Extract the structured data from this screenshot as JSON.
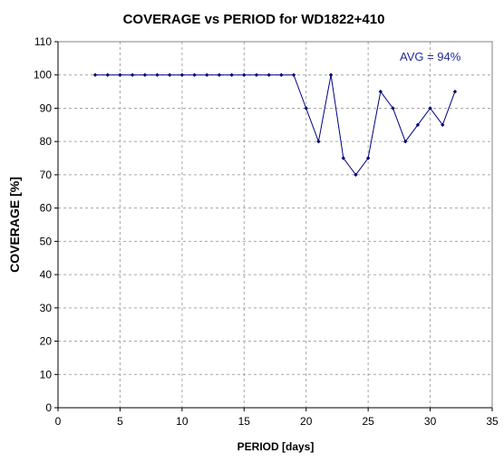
{
  "chart_data": {
    "type": "line",
    "title": "COVERAGE vs PERIOD for WD1822+410",
    "xlabel": "PERIOD [days]",
    "ylabel": "COVERAGE [%]",
    "xlim": [
      0,
      35
    ],
    "ylim": [
      0,
      110
    ],
    "xticks": [
      0,
      5,
      10,
      15,
      20,
      25,
      30,
      35
    ],
    "yticks": [
      0,
      10,
      20,
      30,
      40,
      50,
      60,
      70,
      80,
      90,
      100,
      110
    ],
    "grid": true,
    "legend": "none",
    "annotation": "AVG = 94%",
    "series": [
      {
        "color": "#000080",
        "x": [
          3,
          4,
          5,
          6,
          7,
          8,
          9,
          10,
          11,
          12,
          13,
          14,
          15,
          16,
          17,
          18,
          19,
          20,
          21,
          22,
          23,
          24,
          25,
          26,
          27,
          28,
          29,
          30,
          31,
          32
        ],
        "y": [
          100,
          100,
          100,
          100,
          100,
          100,
          100,
          100,
          100,
          100,
          100,
          100,
          100,
          100,
          100,
          100,
          100,
          90,
          80,
          100,
          75,
          70,
          75,
          95,
          90,
          80,
          85,
          90,
          85,
          95
        ]
      }
    ]
  }
}
